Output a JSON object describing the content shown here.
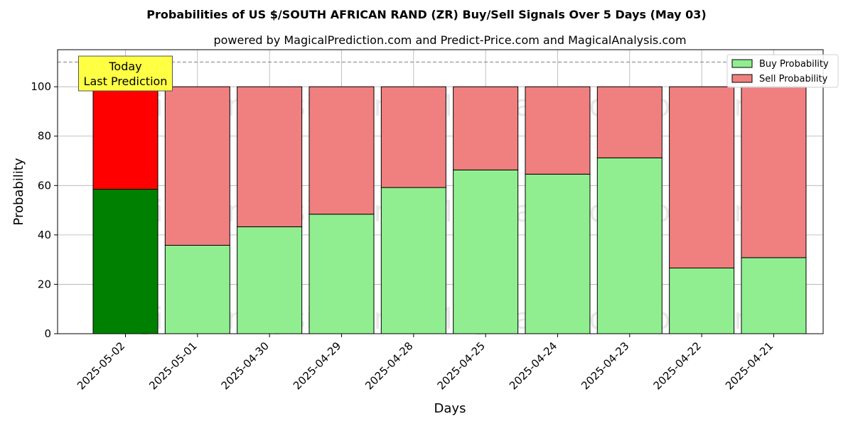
{
  "chart_data": {
    "type": "bar",
    "stacked": true,
    "title": "Probabilities of US $/SOUTH AFRICAN RAND (ZR) Buy/Sell Signals Over 5 Days (May 03)",
    "subtitle": "powered by MagicalPrediction.com and Predict-Price.com and MagicalAnalysis.com",
    "xlabel": "Days",
    "ylabel": "Probability",
    "ylim": [
      0,
      115
    ],
    "yticks": [
      0,
      20,
      40,
      60,
      80,
      100
    ],
    "grid": true,
    "legend_position": "top-right",
    "categories": [
      "2025-05-02",
      "2025-05-01",
      "2025-04-30",
      "2025-04-29",
      "2025-04-28",
      "2025-04-25",
      "2025-04-24",
      "2025-04-23",
      "2025-04-22",
      "2025-04-21"
    ],
    "series": [
      {
        "name": "Buy Probability",
        "values": [
          58.5,
          35.8,
          43.3,
          48.4,
          59.2,
          66.3,
          64.6,
          71.2,
          26.6,
          30.8
        ],
        "color": "#90ee90",
        "highlight_color": "#008000"
      },
      {
        "name": "Sell Probability",
        "values": [
          41.5,
          64.2,
          56.7,
          51.6,
          40.8,
          33.7,
          35.4,
          28.8,
          73.4,
          69.2
        ],
        "color": "#f08080",
        "highlight_color": "#ff0000"
      }
    ],
    "reference_line": {
      "y": 110,
      "style": "dashed",
      "color": "#808080"
    },
    "annotation": {
      "lines": [
        "Today",
        "Last Prediction"
      ],
      "category_index": 0,
      "background": "#ffff44"
    },
    "watermarks": [
      "MagicalAnalysis.com",
      "MagicalPrediction.com"
    ]
  }
}
